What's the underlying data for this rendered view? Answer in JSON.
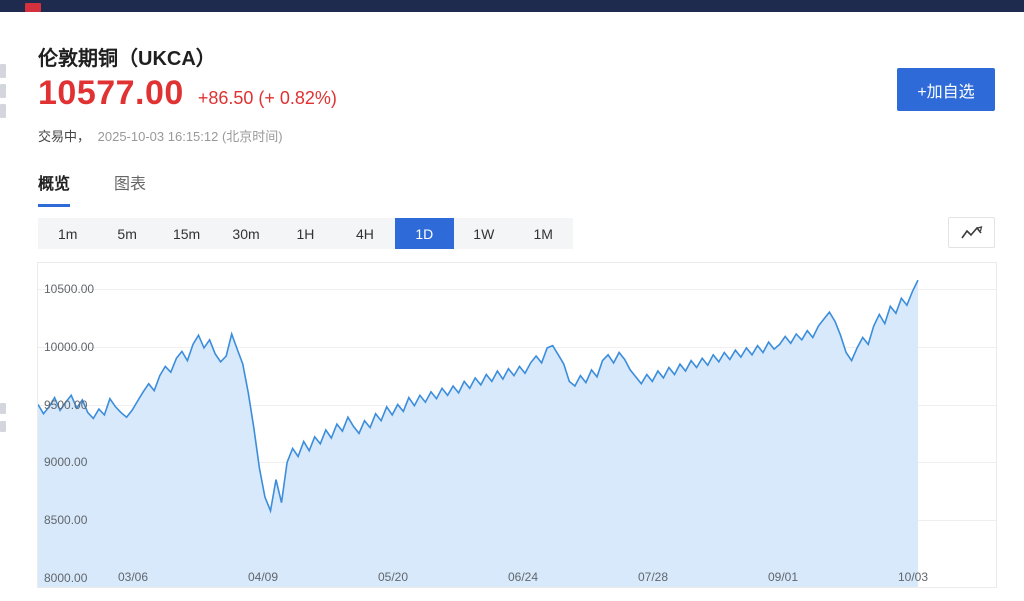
{
  "navbar": {
    "bg_color": "#1e2b4e",
    "logo_color": "#d5303e"
  },
  "header": {
    "title": "伦敦期铜（UKCA）",
    "price": "10577.00",
    "change": "+86.50 (+ 0.82%)",
    "status_label": "交易中，",
    "status_time": "2025-10-03 16:15:12 (北京时间)",
    "add_watchlist_label": "+加自选",
    "price_color": "#e03232",
    "accent_color": "#2e6bd8"
  },
  "tabs": [
    {
      "label": "概览",
      "active": true
    },
    {
      "label": "图表",
      "active": false
    }
  ],
  "intervals": {
    "options": [
      "1m",
      "5m",
      "15m",
      "30m",
      "1H",
      "4H",
      "1D",
      "1W",
      "1M"
    ],
    "selected": "1D"
  },
  "toolbar": {
    "chart_type_icon": "line-chart-icon"
  },
  "chart_data": {
    "type": "area",
    "title": "伦敦期铜 (UKCA) 1D",
    "ylim": [
      8000,
      10650
    ],
    "yticks": [
      "10500.00",
      "10000.00",
      "9500.00",
      "9000.00",
      "8500.00",
      "8000.00"
    ],
    "xticks": [
      "03/06",
      "04/09",
      "05/20",
      "06/24",
      "07/28",
      "09/01",
      "10/03"
    ],
    "grid": true,
    "legend": false,
    "line_color": "#3c8ddb",
    "fill_color": "#d7e9fa",
    "last_value": 10577.0,
    "values": [
      9500,
      9420,
      9480,
      9560,
      9450,
      9520,
      9580,
      9470,
      9540,
      9430,
      9380,
      9460,
      9410,
      9550,
      9480,
      9430,
      9390,
      9450,
      9530,
      9610,
      9680,
      9620,
      9750,
      9830,
      9780,
      9900,
      9960,
      9880,
      10020,
      10100,
      9990,
      10060,
      9940,
      9870,
      9920,
      10110,
      9980,
      9850,
      9600,
      9300,
      8950,
      8700,
      8580,
      8850,
      8650,
      9000,
      9120,
      9050,
      9180,
      9100,
      9220,
      9160,
      9280,
      9210,
      9330,
      9270,
      9390,
      9310,
      9250,
      9360,
      9300,
      9420,
      9360,
      9480,
      9410,
      9500,
      9440,
      9560,
      9490,
      9580,
      9520,
      9610,
      9550,
      9640,
      9580,
      9660,
      9600,
      9700,
      9640,
      9730,
      9670,
      9760,
      9700,
      9790,
      9720,
      9810,
      9750,
      9830,
      9770,
      9860,
      9920,
      9860,
      9990,
      10010,
      9930,
      9850,
      9700,
      9660,
      9750,
      9690,
      9800,
      9740,
      9880,
      9930,
      9860,
      9950,
      9890,
      9800,
      9740,
      9680,
      9760,
      9700,
      9790,
      9730,
      9820,
      9760,
      9850,
      9790,
      9880,
      9820,
      9900,
      9840,
      9930,
      9870,
      9950,
      9890,
      9970,
      9910,
      9990,
      9930,
      10010,
      9950,
      10040,
      9980,
      10020,
      10090,
      10030,
      10110,
      10060,
      10140,
      10080,
      10180,
      10240,
      10300,
      10220,
      10100,
      9950,
      9880,
      9990,
      10080,
      10020,
      10180,
      10280,
      10200,
      10350,
      10290,
      10420,
      10360,
      10480,
      10577
    ]
  }
}
